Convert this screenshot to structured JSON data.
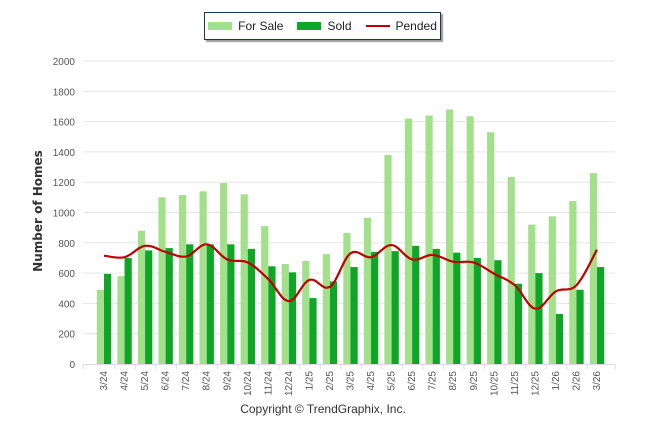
{
  "chart_data": {
    "type": "bar",
    "title": "",
    "xlabel": "",
    "ylabel": "Number of Homes",
    "ylim": [
      0,
      2000
    ],
    "yticks": [
      0,
      200,
      400,
      600,
      800,
      1000,
      1200,
      1400,
      1600,
      1800,
      2000
    ],
    "grid": true,
    "legend_position": "top-center",
    "categories": [
      "3/24",
      "4/24",
      "5/24",
      "6/24",
      "7/24",
      "8/24",
      "9/24",
      "10/24",
      "11/24",
      "12/24",
      "1/25",
      "2/25",
      "3/25",
      "4/25",
      "5/25",
      "6/25",
      "7/25",
      "8/25",
      "9/25",
      "10/25",
      "11/25",
      "12/25",
      "1/26",
      "2/26",
      "3/26"
    ],
    "series": [
      {
        "name": "For Sale",
        "type": "bar",
        "color": "#a3e08c",
        "values": [
          490,
          580,
          880,
          1100,
          1115,
          1140,
          1195,
          1120,
          910,
          660,
          680,
          725,
          865,
          965,
          1380,
          1620,
          1640,
          1680,
          1635,
          1530,
          1235,
          920,
          975,
          1075,
          1260
        ]
      },
      {
        "name": "Sold",
        "type": "bar",
        "color": "#0fa628",
        "values": [
          595,
          700,
          750,
          765,
          790,
          790,
          790,
          760,
          645,
          605,
          435,
          545,
          640,
          740,
          745,
          780,
          760,
          735,
          700,
          685,
          530,
          600,
          330,
          490,
          640
        ]
      },
      {
        "name": "Pended",
        "type": "line",
        "color": "#c00000",
        "values": [
          715,
          705,
          780,
          740,
          710,
          790,
          690,
          670,
          560,
          415,
          555,
          510,
          730,
          705,
          785,
          690,
          720,
          675,
          670,
          595,
          520,
          365,
          480,
          520,
          755
        ]
      }
    ]
  },
  "legend": {
    "items": [
      {
        "label": "For Sale",
        "color": "#a3e08c"
      },
      {
        "label": "Sold",
        "color": "#0fa628"
      },
      {
        "label": "Pended",
        "color": "#c00000"
      }
    ]
  },
  "footer": {
    "copyright": "Copyright © TrendGraphix, Inc."
  }
}
